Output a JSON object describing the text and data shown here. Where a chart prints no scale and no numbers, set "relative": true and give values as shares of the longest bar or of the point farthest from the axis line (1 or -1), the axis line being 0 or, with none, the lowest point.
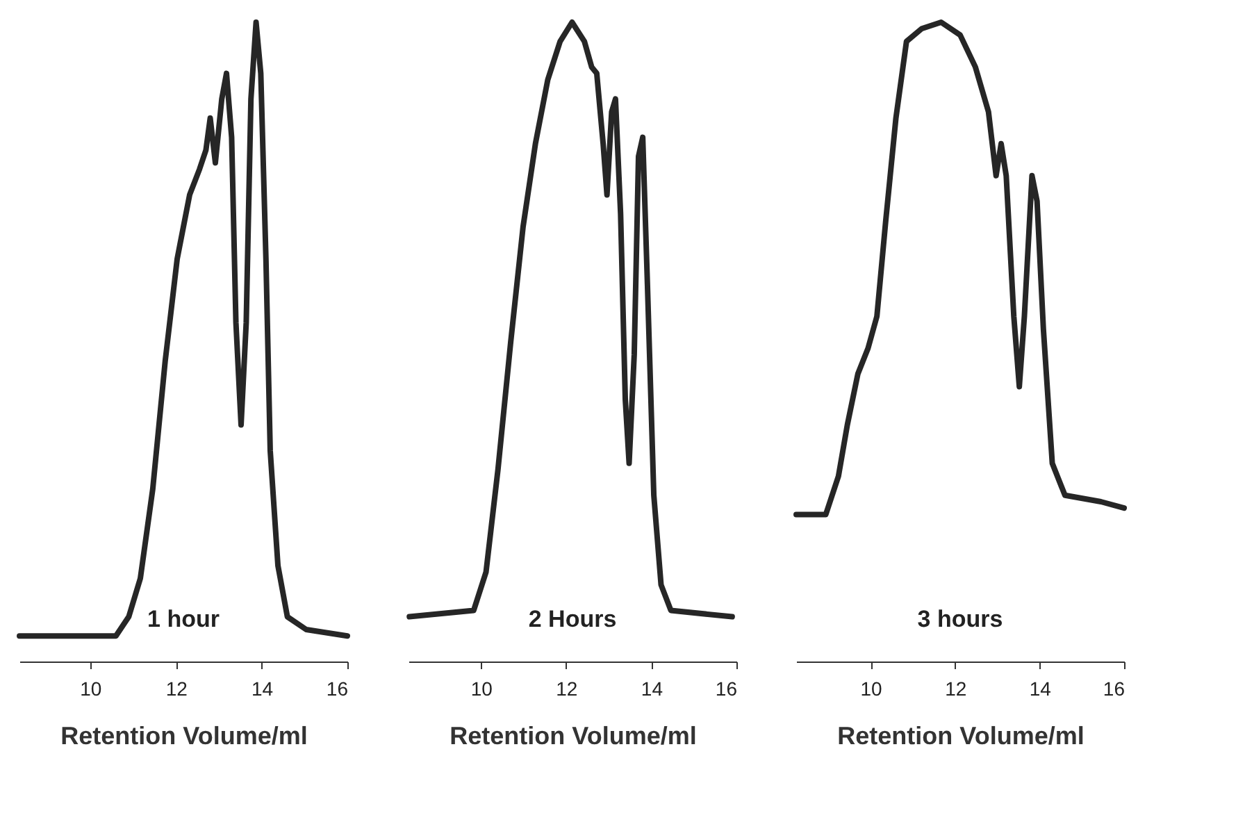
{
  "chart_data": [
    {
      "type": "line",
      "relative": true,
      "color": "#262626",
      "xlabel": "Retention Volume/ml",
      "xlim": [
        8.35,
        16
      ],
      "xticks": [
        10,
        12,
        14,
        16
      ],
      "annotations": [
        "1 hour"
      ],
      "x": [
        8.35,
        10.6,
        10.9,
        11.17,
        11.46,
        11.75,
        12.03,
        12.32,
        12.55,
        12.7,
        12.8,
        12.92,
        13.07,
        13.18,
        13.3,
        13.4,
        13.52,
        13.64,
        13.75,
        13.87,
        13.98,
        14.1,
        14.2,
        14.38,
        14.6,
        15.04,
        16
      ],
      "values": [
        0.04,
        0.04,
        0.07,
        0.13,
        0.27,
        0.47,
        0.63,
        0.73,
        0.77,
        0.8,
        0.85,
        0.78,
        0.88,
        0.92,
        0.82,
        0.53,
        0.37,
        0.53,
        0.88,
        1,
        0.92,
        0.63,
        0.33,
        0.15,
        0.07,
        0.05,
        0.04
      ]
    },
    {
      "type": "line",
      "relative": true,
      "color": "#262626",
      "xlabel": "Retention Volume/ml",
      "xlim": [
        8.3,
        16
      ],
      "xticks": [
        10,
        12,
        14,
        16
      ],
      "annotations": [
        "2 Hours"
      ],
      "x": [
        8.32,
        9.83,
        10.12,
        10.4,
        10.7,
        10.99,
        11.28,
        11.57,
        11.86,
        12.14,
        12.43,
        12.6,
        12.72,
        12.87,
        12.96,
        13.07,
        13.16,
        13.28,
        13.39,
        13.48,
        13.6,
        13.7,
        13.8,
        13.91,
        14.06,
        14.23,
        14.46,
        15.9
      ],
      "values": [
        0.07,
        0.08,
        0.14,
        0.3,
        0.5,
        0.68,
        0.81,
        0.91,
        0.97,
        1,
        0.97,
        0.93,
        0.92,
        0.81,
        0.73,
        0.86,
        0.88,
        0.7,
        0.41,
        0.31,
        0.48,
        0.79,
        0.82,
        0.59,
        0.26,
        0.12,
        0.08,
        0.07
      ]
    },
    {
      "type": "line",
      "relative": true,
      "color": "#262626",
      "xlabel": "Retention Volume/ml",
      "xlim": [
        8.24,
        16
      ],
      "xticks": [
        10,
        12,
        14,
        16
      ],
      "annotations": [
        "3 hours"
      ],
      "x": [
        8.24,
        8.94,
        9.24,
        9.45,
        9.7,
        9.94,
        10.15,
        10.36,
        10.6,
        10.85,
        11.21,
        11.67,
        12.12,
        12.48,
        12.79,
        12.97,
        13.09,
        13.21,
        13.39,
        13.52,
        13.64,
        13.82,
        13.94,
        14.09,
        14.3,
        14.6,
        15.45,
        16
      ],
      "values": [
        0.23,
        0.23,
        0.29,
        0.37,
        0.45,
        0.49,
        0.54,
        0.69,
        0.85,
        0.97,
        0.99,
        1,
        0.98,
        0.93,
        0.86,
        0.76,
        0.81,
        0.76,
        0.54,
        0.43,
        0.54,
        0.76,
        0.72,
        0.52,
        0.31,
        0.26,
        0.25,
        0.24
      ]
    }
  ]
}
